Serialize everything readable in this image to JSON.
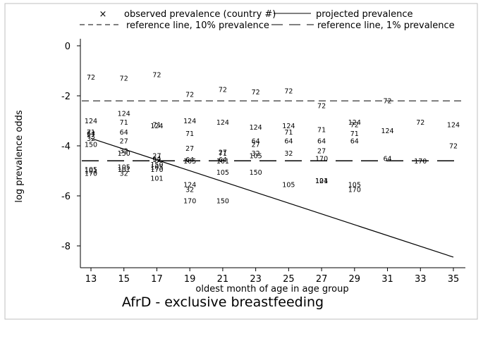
{
  "chart_data": {
    "type": "scatter",
    "title": "AfrD - exclusive breastfeeding",
    "xlabel": "oldest month of age in age group",
    "ylabel": "log prevalence odds",
    "xlim": [
      12.5,
      35.4
    ],
    "ylim": [
      -8.9,
      0.35
    ],
    "x_ticks": [
      13,
      15,
      17,
      19,
      21,
      23,
      25,
      27,
      29,
      31,
      33,
      35
    ],
    "y_ticks": [
      0,
      -2,
      -4,
      -6,
      -8
    ],
    "legend": {
      "observed_marker": "×",
      "observed": "observed prevalence (country #)",
      "projected": "projected prevalence",
      "ref10": "reference line, 10% prevalence",
      "ref1": "reference line, 1% prevalence"
    },
    "reference_lines": {
      "ten_percent": -2.2,
      "one_percent": -4.6
    },
    "projected_line": {
      "x": [
        13,
        35
      ],
      "y": [
        -3.7,
        -8.45
      ]
    },
    "points": [
      {
        "x": 13,
        "y": -1.25,
        "label": "72"
      },
      {
        "x": 13,
        "y": -3.0,
        "label": "124"
      },
      {
        "x": 13,
        "y": -3.45,
        "label": "71"
      },
      {
        "x": 13,
        "y": -3.5,
        "label": "64"
      },
      {
        "x": 13,
        "y": -3.55,
        "label": "27"
      },
      {
        "x": 13,
        "y": -3.7,
        "label": "32"
      },
      {
        "x": 13,
        "y": -3.95,
        "label": "150"
      },
      {
        "x": 13,
        "y": -4.95,
        "label": "105"
      },
      {
        "x": 13,
        "y": -5.0,
        "label": "101"
      },
      {
        "x": 13,
        "y": -5.1,
        "label": "170"
      },
      {
        "x": 15,
        "y": -1.3,
        "label": "72"
      },
      {
        "x": 15,
        "y": -2.7,
        "label": "124"
      },
      {
        "x": 15,
        "y": -3.05,
        "label": "71"
      },
      {
        "x": 15,
        "y": -3.45,
        "label": "64"
      },
      {
        "x": 15,
        "y": -3.8,
        "label": "27"
      },
      {
        "x": 15,
        "y": -4.2,
        "label": "32"
      },
      {
        "x": 15,
        "y": -4.3,
        "label": "150"
      },
      {
        "x": 15,
        "y": -4.85,
        "label": "105"
      },
      {
        "x": 15,
        "y": -4.95,
        "label": "101"
      },
      {
        "x": 15,
        "y": -5.1,
        "label": "32"
      },
      {
        "x": 17,
        "y": -1.15,
        "label": "72"
      },
      {
        "x": 17,
        "y": -3.15,
        "label": "71"
      },
      {
        "x": 17,
        "y": -3.2,
        "label": "124"
      },
      {
        "x": 17,
        "y": -4.4,
        "label": "27"
      },
      {
        "x": 17,
        "y": -4.5,
        "label": "64"
      },
      {
        "x": 17,
        "y": -4.55,
        "label": "32"
      },
      {
        "x": 17,
        "y": -4.75,
        "label": "150"
      },
      {
        "x": 17,
        "y": -4.85,
        "label": "105"
      },
      {
        "x": 17,
        "y": -4.95,
        "label": "170"
      },
      {
        "x": 17,
        "y": -5.3,
        "label": "101"
      },
      {
        "x": 19,
        "y": -1.95,
        "label": "72"
      },
      {
        "x": 19,
        "y": -3.0,
        "label": "124"
      },
      {
        "x": 19,
        "y": -3.5,
        "label": "71"
      },
      {
        "x": 19,
        "y": -4.1,
        "label": "27"
      },
      {
        "x": 19,
        "y": -4.55,
        "label": "64"
      },
      {
        "x": 19,
        "y": -4.6,
        "label": "105"
      },
      {
        "x": 19,
        "y": -5.55,
        "label": "124"
      },
      {
        "x": 19,
        "y": -5.75,
        "label": "32"
      },
      {
        "x": 19,
        "y": -6.2,
        "label": "170"
      },
      {
        "x": 21,
        "y": -1.75,
        "label": "72"
      },
      {
        "x": 21,
        "y": -3.05,
        "label": "124"
      },
      {
        "x": 21,
        "y": -4.25,
        "label": "27"
      },
      {
        "x": 21,
        "y": -4.3,
        "label": "71"
      },
      {
        "x": 21,
        "y": -4.55,
        "label": "64"
      },
      {
        "x": 21,
        "y": -4.6,
        "label": "101"
      },
      {
        "x": 21,
        "y": -5.05,
        "label": "105"
      },
      {
        "x": 21,
        "y": -6.2,
        "label": "150"
      },
      {
        "x": 23,
        "y": -1.85,
        "label": "72"
      },
      {
        "x": 23,
        "y": -3.25,
        "label": "124"
      },
      {
        "x": 23,
        "y": -3.8,
        "label": "64"
      },
      {
        "x": 23,
        "y": -3.95,
        "label": "27"
      },
      {
        "x": 23,
        "y": -4.3,
        "label": "32"
      },
      {
        "x": 23,
        "y": -4.4,
        "label": "105"
      },
      {
        "x": 23,
        "y": -5.05,
        "label": "150"
      },
      {
        "x": 25,
        "y": -1.8,
        "label": "72"
      },
      {
        "x": 25,
        "y": -3.2,
        "label": "124"
      },
      {
        "x": 25,
        "y": -3.45,
        "label": "71"
      },
      {
        "x": 25,
        "y": -3.8,
        "label": "64"
      },
      {
        "x": 25,
        "y": -4.3,
        "label": "32"
      },
      {
        "x": 25,
        "y": -5.55,
        "label": "105"
      },
      {
        "x": 27,
        "y": -2.4,
        "label": "72"
      },
      {
        "x": 27,
        "y": -3.35,
        "label": "71"
      },
      {
        "x": 27,
        "y": -3.8,
        "label": "64"
      },
      {
        "x": 27,
        "y": -4.2,
        "label": "27"
      },
      {
        "x": 27,
        "y": -4.5,
        "label": "170"
      },
      {
        "x": 27,
        "y": -5.4,
        "label": "101"
      },
      {
        "x": 27,
        "y": -5.4,
        "label": "124"
      },
      {
        "x": 29,
        "y": -3.05,
        "label": "124"
      },
      {
        "x": 29,
        "y": -3.15,
        "label": "72"
      },
      {
        "x": 29,
        "y": -3.5,
        "label": "71"
      },
      {
        "x": 29,
        "y": -3.8,
        "label": "64"
      },
      {
        "x": 29,
        "y": -5.55,
        "label": "105"
      },
      {
        "x": 29,
        "y": -5.75,
        "label": "170"
      },
      {
        "x": 31,
        "y": -2.2,
        "label": "72"
      },
      {
        "x": 31,
        "y": -3.4,
        "label": "124"
      },
      {
        "x": 31,
        "y": -4.5,
        "label": "64"
      },
      {
        "x": 33,
        "y": -3.05,
        "label": "72"
      },
      {
        "x": 33,
        "y": -4.6,
        "label": "170"
      },
      {
        "x": 35,
        "y": -3.15,
        "label": "124"
      },
      {
        "x": 35,
        "y": -4.0,
        "label": "72"
      }
    ]
  }
}
